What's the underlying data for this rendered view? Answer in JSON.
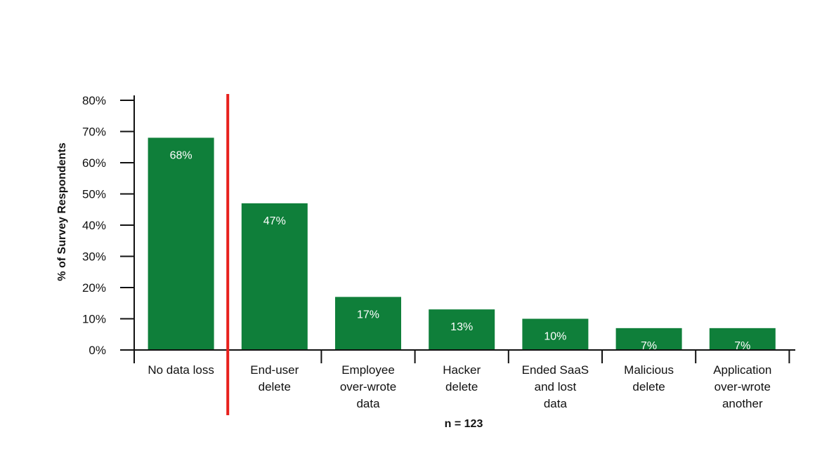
{
  "chart_data": {
    "type": "bar",
    "categories": [
      [
        "No data loss"
      ],
      [
        "End-user",
        "delete"
      ],
      [
        "Employee",
        "over-wrote",
        "data"
      ],
      [
        "Hacker",
        "delete"
      ],
      [
        "Ended SaaS",
        "and lost",
        "data"
      ],
      [
        "Malicious",
        "delete"
      ],
      [
        "Application",
        "over-wrote",
        "another"
      ]
    ],
    "values": [
      68,
      47,
      17,
      13,
      10,
      7,
      7
    ],
    "data_labels": [
      "68%",
      "47%",
      "17%",
      "13%",
      "10%",
      "7%",
      "7%"
    ],
    "ylabel": "% of Survey Respondents",
    "ylim": [
      0,
      80
    ],
    "yticks": [
      0,
      10,
      20,
      30,
      40,
      50,
      60,
      70,
      80
    ],
    "ytick_labels": [
      "0%",
      "10%",
      "20%",
      "30%",
      "40%",
      "50%",
      "60%",
      "70%",
      "80%"
    ],
    "note": "n = 123",
    "separator_after_category": 0,
    "grid": false,
    "legend": "none",
    "colors": {
      "bar": "#0f7f3a",
      "separator": "#e8201c",
      "axis": "#111111",
      "bar_label": "#ffffff"
    }
  }
}
